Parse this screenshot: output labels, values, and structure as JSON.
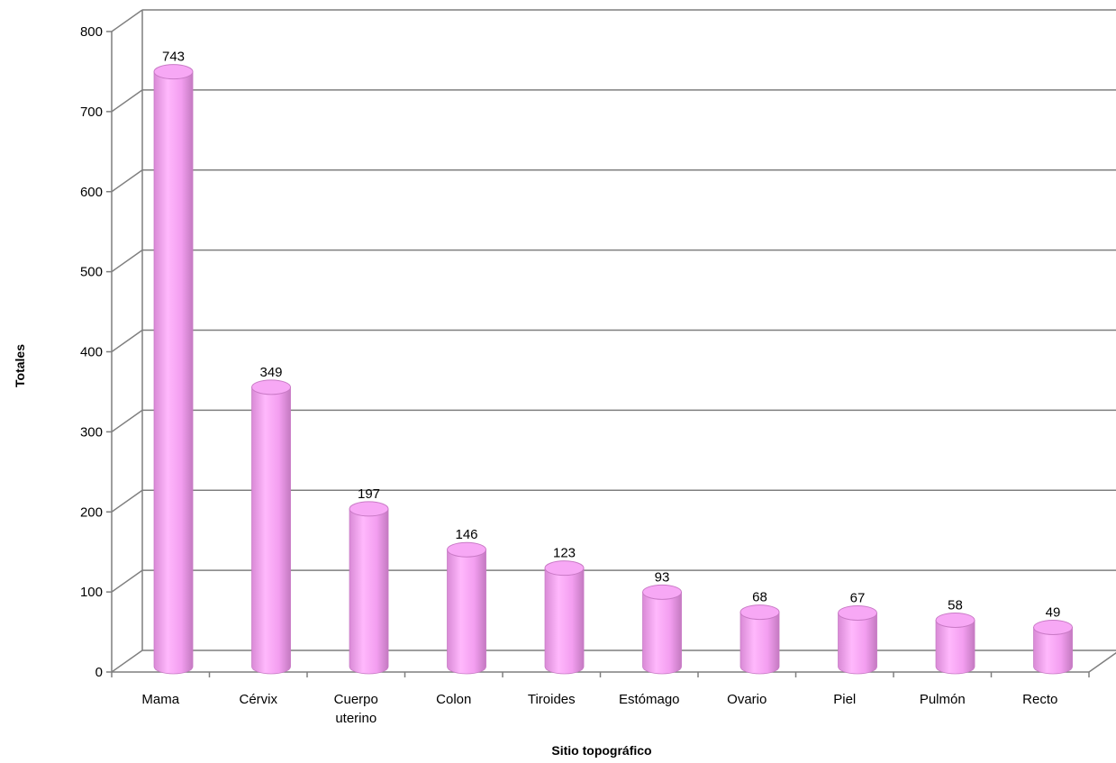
{
  "chart_data": {
    "type": "bar",
    "title": "",
    "xlabel": "Sitio topográfico",
    "ylabel": "Totales",
    "categories": [
      "Mama",
      "Cérvix",
      "Cuerpo uterino",
      "Colon",
      "Tiroides",
      "Estómago",
      "Ovario",
      "Piel",
      "Pulmón",
      "Recto"
    ],
    "values": [
      743,
      349,
      197,
      146,
      123,
      93,
      68,
      67,
      58,
      49
    ],
    "ylim": [
      0,
      800
    ],
    "yticks": [
      "0",
      "100",
      "200",
      "300",
      "400",
      "500",
      "600",
      "700",
      "800"
    ],
    "grid": true,
    "legend": "none",
    "bar_color": "#f7a8f5",
    "bar_shade": "#c97ac6",
    "gridline_color": "#7f7f7f"
  }
}
